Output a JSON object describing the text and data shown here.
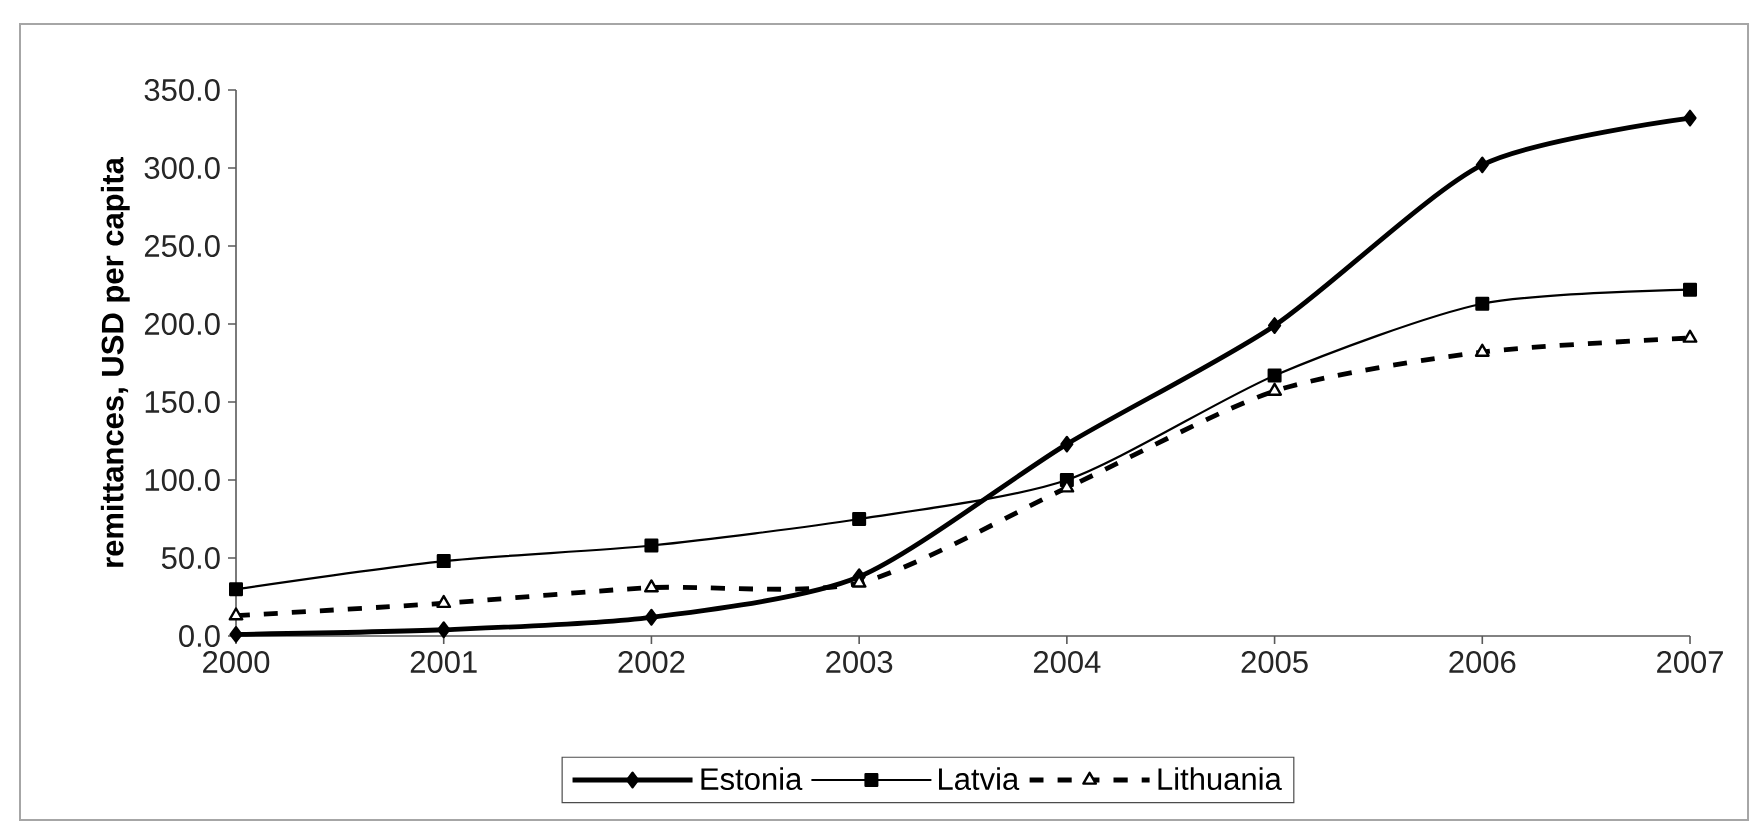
{
  "chart_data": {
    "type": "line",
    "ylabel": "remittances, USD per capita",
    "categories": [
      "2000",
      "2001",
      "2002",
      "2003",
      "2004",
      "2005",
      "2006",
      "2007"
    ],
    "series": [
      {
        "name": "Estonia",
        "color": "#000000",
        "marker": "diamond",
        "line_style": "solid",
        "values": [
          1,
          4,
          12,
          38,
          123,
          199,
          302,
          332
        ]
      },
      {
        "name": "Latvia",
        "color": "#000000",
        "marker": "square",
        "line_style": "solid",
        "values": [
          30,
          48,
          58,
          75,
          100,
          167,
          213,
          222
        ]
      },
      {
        "name": "Lithuania",
        "color": "#000000",
        "marker": "triangle",
        "line_style": "dashed",
        "values": [
          13,
          21,
          31,
          34,
          95,
          157,
          182,
          191
        ]
      }
    ],
    "ylim": [
      0,
      350
    ],
    "yticks": [
      {
        "value": 0,
        "label": "0.0"
      },
      {
        "value": 50,
        "label": "50.0"
      },
      {
        "value": 100,
        "label": "100.0"
      },
      {
        "value": 150,
        "label": "150.0"
      },
      {
        "value": 200,
        "label": "200.0"
      },
      {
        "value": 250,
        "label": "250.0"
      },
      {
        "value": 300,
        "label": "300.0"
      },
      {
        "value": 350,
        "label": "350.0"
      }
    ],
    "legend": "bottom"
  }
}
